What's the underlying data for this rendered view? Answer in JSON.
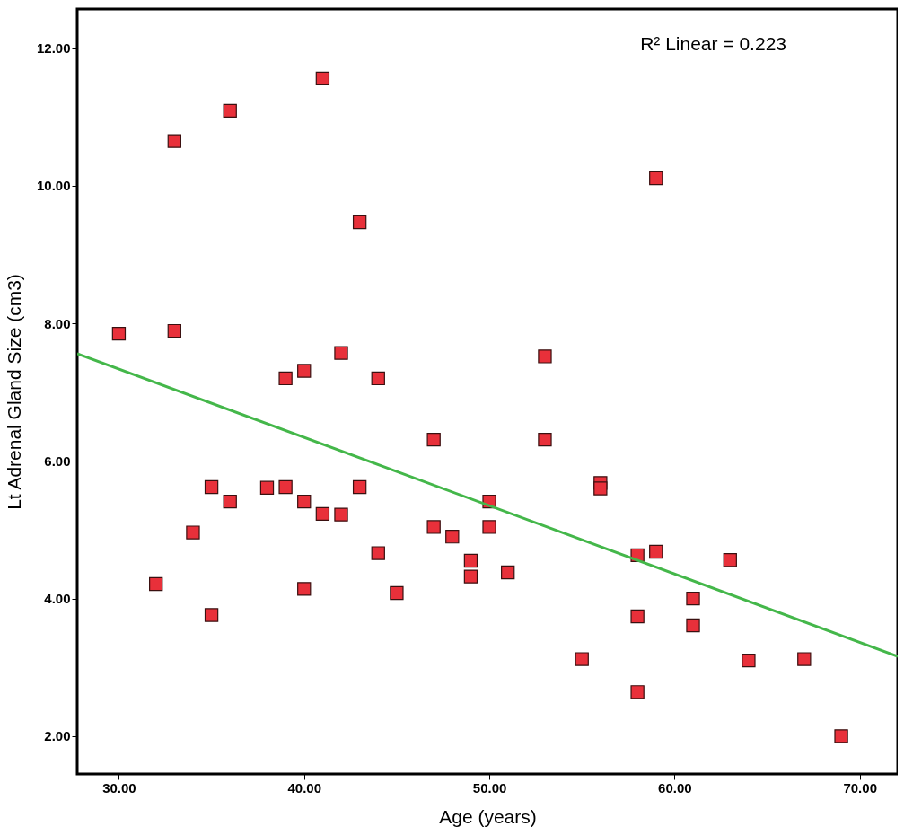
{
  "chart_data": {
    "type": "scatter",
    "xlabel": "Age (years)",
    "ylabel": "Lt Adrenal Gland Size (cm3)",
    "annotations": [
      "R² Linear = 0.223"
    ],
    "xlim": [
      27.75,
      72.05
    ],
    "ylim": [
      1.45,
      12.57
    ],
    "xticks": [
      {
        "value": 30,
        "label": "30.00"
      },
      {
        "value": 40,
        "label": "40.00"
      },
      {
        "value": 50,
        "label": "50.00"
      },
      {
        "value": 60,
        "label": "60.00"
      },
      {
        "value": 70,
        "label": "70.00"
      }
    ],
    "yticks": [
      {
        "value": 2,
        "label": "2.00"
      },
      {
        "value": 4,
        "label": "4.00"
      },
      {
        "value": 6,
        "label": "6.00"
      },
      {
        "value": 8,
        "label": "8.00"
      },
      {
        "value": 10,
        "label": "10.00"
      },
      {
        "value": 12,
        "label": "12.00"
      }
    ],
    "grid": false,
    "marker": "square",
    "series": [
      {
        "color": "#e8303a",
        "x": [
          30,
          32,
          33,
          33,
          34,
          35,
          35,
          36,
          36,
          38,
          39,
          39,
          40,
          40,
          40,
          41,
          41,
          42,
          42,
          43,
          43,
          44,
          44,
          45,
          47,
          47,
          48,
          49,
          49,
          50,
          50,
          51,
          53,
          53,
          55,
          56,
          56,
          58,
          58,
          58,
          59,
          59,
          61,
          61,
          63,
          64,
          67,
          69
        ],
        "values": [
          7.85,
          4.21,
          10.65,
          7.89,
          4.96,
          5.62,
          3.76,
          11.09,
          5.41,
          5.61,
          5.62,
          7.2,
          7.31,
          5.41,
          4.14,
          11.56,
          5.23,
          7.57,
          5.22,
          9.47,
          5.62,
          7.2,
          4.66,
          4.08,
          6.31,
          5.04,
          4.9,
          4.55,
          4.32,
          5.41,
          5.04,
          4.38,
          7.52,
          6.31,
          3.12,
          5.68,
          5.6,
          4.63,
          3.74,
          2.64,
          10.11,
          4.68,
          4.0,
          3.61,
          4.56,
          3.1,
          3.12,
          2.0
        ]
      },
      {
        "type": "line",
        "marker": "none",
        "color": "#44b74a",
        "x": [
          27.75,
          72.05
        ],
        "values": [
          7.56,
          3.16
        ]
      }
    ]
  }
}
